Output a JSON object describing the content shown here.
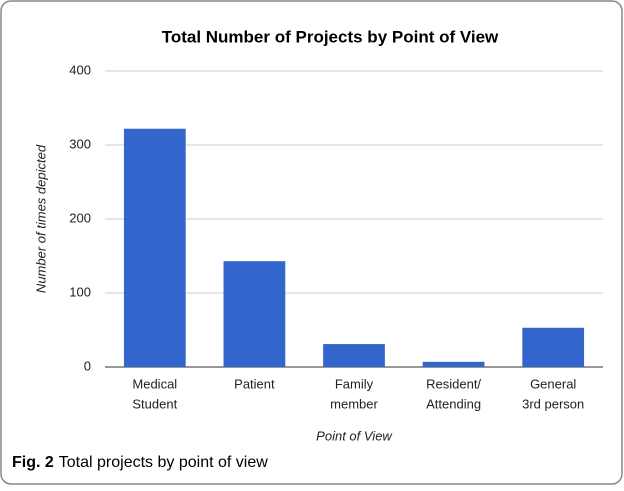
{
  "chart_data": {
    "type": "bar",
    "title": "Total Number of Projects by Point of View",
    "categories": [
      [
        "Medical",
        "Student"
      ],
      [
        "Patient"
      ],
      [
        "Family",
        "member"
      ],
      [
        "Resident/",
        "Attending"
      ],
      [
        "General",
        "3rd person"
      ]
    ],
    "values": [
      322,
      143,
      31,
      7,
      53
    ],
    "color": "#3366cc",
    "xlabel": "Point of View",
    "ylabel": "Number of times depicted",
    "ylim": [
      0,
      400
    ],
    "yticks": [
      0,
      100,
      200,
      300,
      400
    ],
    "grid": true
  },
  "caption": {
    "label": "Fig. 2",
    "text": "Total projects by point of view"
  }
}
